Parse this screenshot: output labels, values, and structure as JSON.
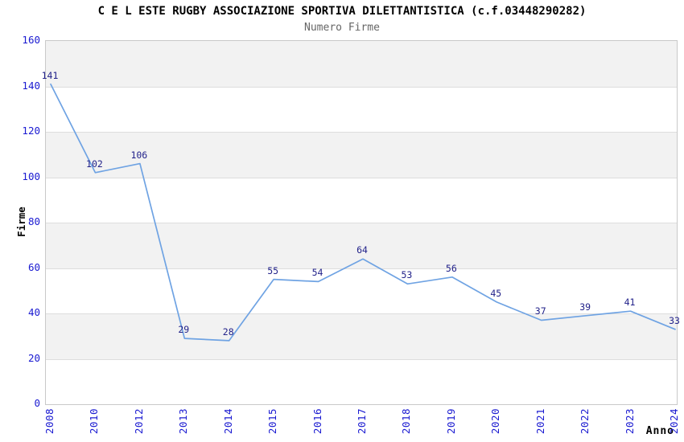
{
  "header": {
    "title": "C E L ESTE RUGBY ASSOCIAZIONE SPORTIVA DILETTANTISTICA (c.f.03448290282)",
    "subtitle": "Numero Firme"
  },
  "chart_data": {
    "type": "line",
    "title": "C E L ESTE RUGBY ASSOCIAZIONE SPORTIVA DILETTANTISTICA (c.f.03448290282)",
    "subtitle": "Numero Firme",
    "xlabel": "Anno",
    "ylabel": "Firme",
    "categories": [
      "2008",
      "2010",
      "2012",
      "2013",
      "2014",
      "2015",
      "2016",
      "2017",
      "2018",
      "2019",
      "2020",
      "2021",
      "2022",
      "2023",
      "2024"
    ],
    "values": [
      141,
      102,
      106,
      29,
      28,
      55,
      54,
      64,
      53,
      56,
      45,
      37,
      39,
      41,
      33
    ],
    "ylim": [
      0,
      160
    ],
    "ytick_step": 20,
    "yticks": [
      0,
      20,
      40,
      60,
      80,
      100,
      120,
      140,
      160
    ],
    "grid": true,
    "legend": false,
    "data_labels": true,
    "colors": {
      "line": "#6fa3e3",
      "point_label": "#22228a",
      "tick_label": "#1a1ad1",
      "axis_title": "#000000",
      "title": "#000000",
      "subtitle": "#666666",
      "band_fill": "#f2f2f2",
      "band_alt_fill": "#ffffff",
      "gridline": "#dddddd",
      "plot_border": "#c9c9c9",
      "background": "#ffffff"
    }
  }
}
